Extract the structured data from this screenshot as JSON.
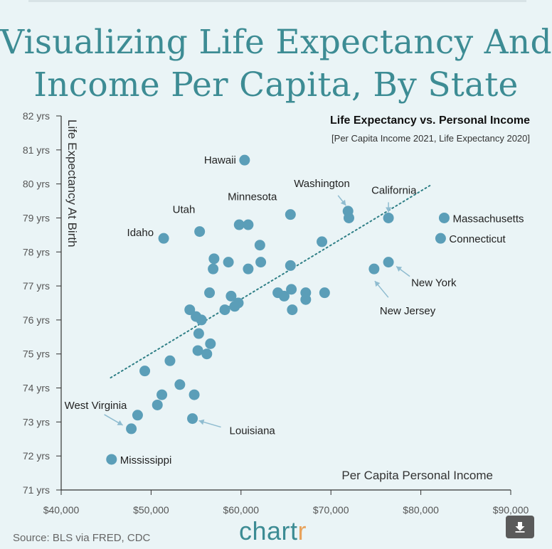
{
  "title_line1": "Visualizing Life Expectancy And",
  "title_line2": "Income Per Capita, By State",
  "source": "Source: BLS via FRED, CDC",
  "brand": {
    "main": "chart",
    "accent": "r"
  },
  "download_icon": "download-arrow-icon",
  "colors": {
    "accent": "#3d8c94",
    "point": "#5b9eb8",
    "background": "#eaf4f6",
    "brand_r": "#e8a25b"
  },
  "chart_data": {
    "type": "scatter",
    "subtitle": "Life Expectancy vs. Personal Income",
    "subsubtitle": "[Per Capita Income 2021, Life Expectancy 2020]",
    "xlabel": "Per Capita Personal Income",
    "ylabel": "Life Expectancy At Birth",
    "xlim": [
      40000,
      90000
    ],
    "ylim": [
      71,
      82
    ],
    "xticks": [
      {
        "value": 40000,
        "label": "$40,000"
      },
      {
        "value": 50000,
        "label": "$50,000"
      },
      {
        "value": 60000,
        "label": "$60,000"
      },
      {
        "value": 70000,
        "label": "$70,000"
      },
      {
        "value": 80000,
        "label": "$80,000"
      },
      {
        "value": 90000,
        "label": "$90,000"
      }
    ],
    "yticks": [
      {
        "value": 71,
        "label": "71 yrs"
      },
      {
        "value": 72,
        "label": "72 yrs"
      },
      {
        "value": 73,
        "label": "73 yrs"
      },
      {
        "value": 74,
        "label": "74 yrs"
      },
      {
        "value": 75,
        "label": "75 yrs"
      },
      {
        "value": 76,
        "label": "76 yrs"
      },
      {
        "value": 77,
        "label": "77 yrs"
      },
      {
        "value": 78,
        "label": "78 yrs"
      },
      {
        "value": 79,
        "label": "79 yrs"
      },
      {
        "value": 80,
        "label": "80 yrs"
      },
      {
        "value": 81,
        "label": "81 yrs"
      },
      {
        "value": 82,
        "label": "82 yrs"
      }
    ],
    "trendline": {
      "x": [
        45500,
        81000
      ],
      "y": [
        74.3,
        79.95
      ]
    },
    "points": [
      {
        "x": 60400,
        "y": 80.7,
        "label": "Hawaii"
      },
      {
        "x": 51400,
        "y": 78.4,
        "label": "Idaho"
      },
      {
        "x": 55400,
        "y": 78.6,
        "label": "Utah"
      },
      {
        "x": 65500,
        "y": 79.1,
        "label": "Minnesota"
      },
      {
        "x": 71900,
        "y": 79.2,
        "label": "Washington"
      },
      {
        "x": 76400,
        "y": 79.0,
        "label": "California"
      },
      {
        "x": 82600,
        "y": 79.0,
        "label": "Massachusetts"
      },
      {
        "x": 82200,
        "y": 78.4,
        "label": "Connecticut"
      },
      {
        "x": 76400,
        "y": 77.7,
        "label": "New York"
      },
      {
        "x": 74800,
        "y": 77.5,
        "label": "New Jersey"
      },
      {
        "x": 47800,
        "y": 72.8,
        "label": "West Virginia"
      },
      {
        "x": 54600,
        "y": 73.1,
        "label": "Louisiana"
      },
      {
        "x": 45600,
        "y": 71.9,
        "label": "Mississippi"
      },
      {
        "x": 72000,
        "y": 79.0
      },
      {
        "x": 59800,
        "y": 78.8
      },
      {
        "x": 60800,
        "y": 78.8
      },
      {
        "x": 62100,
        "y": 78.2
      },
      {
        "x": 69000,
        "y": 78.3
      },
      {
        "x": 57000,
        "y": 77.8
      },
      {
        "x": 58600,
        "y": 77.7
      },
      {
        "x": 62200,
        "y": 77.7
      },
      {
        "x": 56900,
        "y": 77.5
      },
      {
        "x": 60800,
        "y": 77.5
      },
      {
        "x": 65500,
        "y": 77.6
      },
      {
        "x": 56500,
        "y": 76.8
      },
      {
        "x": 58900,
        "y": 76.7
      },
      {
        "x": 64100,
        "y": 76.8
      },
      {
        "x": 64800,
        "y": 76.7
      },
      {
        "x": 65600,
        "y": 76.9
      },
      {
        "x": 67200,
        "y": 76.8
      },
      {
        "x": 67200,
        "y": 76.6
      },
      {
        "x": 69300,
        "y": 76.8
      },
      {
        "x": 59700,
        "y": 76.5
      },
      {
        "x": 59300,
        "y": 76.4
      },
      {
        "x": 58200,
        "y": 76.3
      },
      {
        "x": 54300,
        "y": 76.3
      },
      {
        "x": 55000,
        "y": 76.1
      },
      {
        "x": 55600,
        "y": 76.0
      },
      {
        "x": 65700,
        "y": 76.3
      },
      {
        "x": 55300,
        "y": 75.6
      },
      {
        "x": 56600,
        "y": 75.3
      },
      {
        "x": 55200,
        "y": 75.1
      },
      {
        "x": 56200,
        "y": 75.0
      },
      {
        "x": 52100,
        "y": 74.8
      },
      {
        "x": 49300,
        "y": 74.5
      },
      {
        "x": 53200,
        "y": 74.1
      },
      {
        "x": 51200,
        "y": 73.8
      },
      {
        "x": 54800,
        "y": 73.8
      },
      {
        "x": 50700,
        "y": 73.5
      },
      {
        "x": 48500,
        "y": 73.2
      }
    ]
  }
}
